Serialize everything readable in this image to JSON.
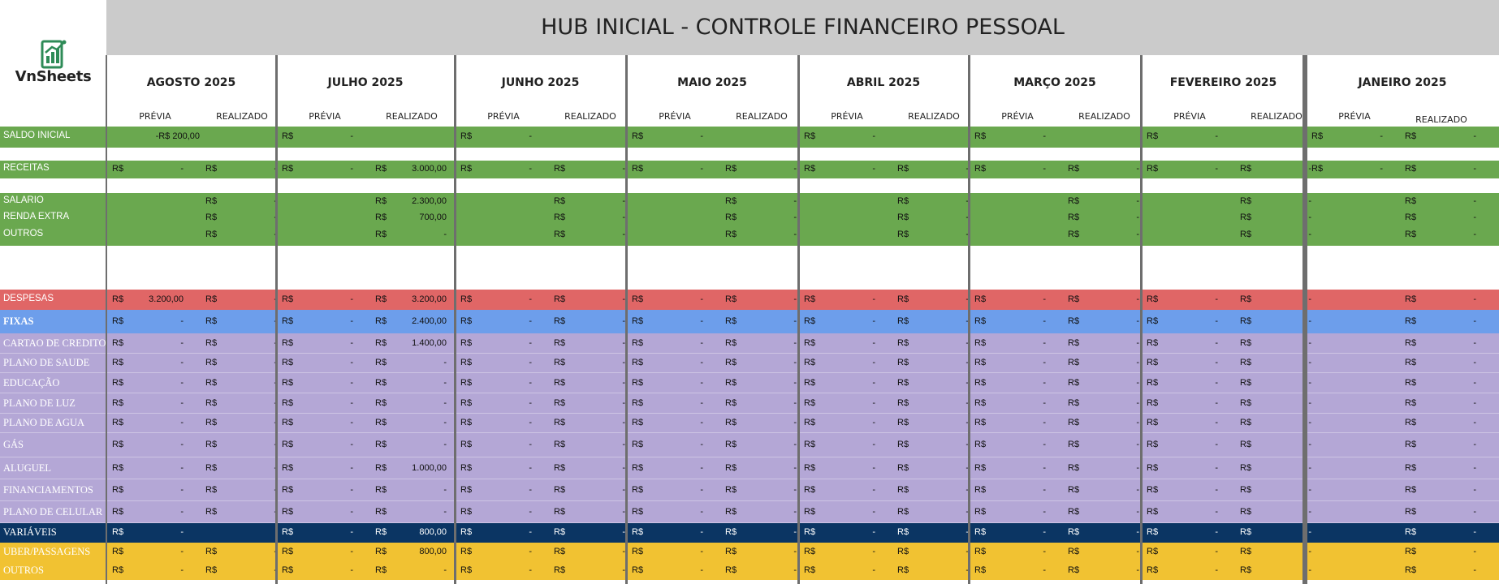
{
  "logo": {
    "text": "VnSheets",
    "icon": "spreadsheet-chart-icon"
  },
  "title": "HUB INICIAL - CONTROLE FINANCEIRO PESSOAL",
  "months": [
    "AGOSTO 2025",
    "JULHO 2025",
    "JUNHO 2025",
    "MAIO 2025",
    "ABRIL 2025",
    "MARÇO 2025",
    "FEVEREIRO 2025",
    "JANEIRO 2025"
  ],
  "col_headers": {
    "previa": "PRÉVIA",
    "realizado": "REALIZADO"
  },
  "currency": "R$",
  "empty_value": "-",
  "colors": {
    "green": "#6aa84f",
    "red": "#e06666",
    "blue": "#6d9eeb",
    "purple": "#b4a7d6",
    "navy": "#0b3563",
    "yellow": "#f1c232",
    "title_bg": "#cbcbcb"
  },
  "rows": [
    {
      "label": "SALDO INICIAL",
      "type": "saldo",
      "band": "green",
      "special_previa_first": "-R$ 200,00",
      "previa_cur": [
        false,
        true,
        true,
        true,
        true,
        true,
        true,
        true
      ],
      "realizado_cur": [
        false,
        false,
        false,
        false,
        false,
        false,
        false,
        true
      ],
      "previa_vals": [
        "",
        "-",
        "-",
        "-",
        "-",
        "-",
        "-",
        "-"
      ],
      "realizado_vals": [
        "",
        "",
        "",
        "",
        "",
        "",
        "",
        "-"
      ]
    },
    {
      "label": "RECEITAS",
      "type": "std",
      "band": "green",
      "previa": [
        "-",
        "-",
        "-",
        "-",
        "-",
        "-",
        "-",
        "-"
      ],
      "realizado": [
        "-",
        "3.000,00",
        "-",
        "-",
        "-",
        "-",
        "-",
        "-"
      ]
    },
    {
      "label": "SALARIO",
      "type": "real_only",
      "band": "green",
      "realizado": [
        "-",
        "2.300,00",
        "-",
        "-",
        "-",
        "-",
        "-",
        "-"
      ]
    },
    {
      "label": "RENDA EXTRA",
      "type": "real_only",
      "band": "green",
      "realizado": [
        "-",
        "700,00",
        "-",
        "-",
        "-",
        "-",
        "-",
        "-"
      ]
    },
    {
      "label": "OUTROS",
      "type": "real_only",
      "band": "green",
      "realizado": [
        "-",
        "-",
        "-",
        "-",
        "-",
        "-",
        "-",
        "-"
      ]
    },
    {
      "label": "DESPESAS",
      "type": "std_jan_real",
      "band": "red",
      "previa": [
        "3.200,00",
        "-",
        "-",
        "-",
        "-",
        "-",
        "-",
        ""
      ],
      "realizado": [
        "-",
        "3.200,00",
        "-",
        "-",
        "-",
        "-",
        "-",
        "-"
      ]
    },
    {
      "label": "FIXAS",
      "type": "std_jan_real",
      "band": "blue",
      "bold": true,
      "previa": [
        "-",
        "-",
        "-",
        "-",
        "-",
        "-",
        "-",
        ""
      ],
      "realizado": [
        "-",
        "2.400,00",
        "-",
        "-",
        "-",
        "-",
        "-",
        "-"
      ]
    },
    {
      "label": "CARTAO DE CREDITO",
      "type": "std_jan_real",
      "band": "purple",
      "previa": [
        "-",
        "-",
        "-",
        "-",
        "-",
        "-",
        "-",
        ""
      ],
      "realizado": [
        "-",
        "1.400,00",
        "-",
        "-",
        "-",
        "-",
        "-",
        "-"
      ]
    },
    {
      "label": "PLANO DE SAUDE",
      "type": "std_jan_real",
      "band": "purple",
      "previa": [
        "-",
        "-",
        "-",
        "-",
        "-",
        "-",
        "-",
        ""
      ],
      "realizado": [
        "-",
        "-",
        "-",
        "-",
        "-",
        "-",
        "-",
        "-"
      ]
    },
    {
      "label": "EDUCAÇÃO",
      "type": "std_jan_real",
      "band": "purple",
      "previa": [
        "-",
        "-",
        "-",
        "-",
        "-",
        "-",
        "-",
        ""
      ],
      "realizado": [
        "-",
        "-",
        "-",
        "-",
        "-",
        "-",
        "-",
        "-"
      ]
    },
    {
      "label": "PLANO DE LUZ",
      "type": "std_jan_real",
      "band": "purple",
      "previa": [
        "-",
        "-",
        "-",
        "-",
        "-",
        "-",
        "-",
        ""
      ],
      "realizado": [
        "-",
        "-",
        "-",
        "-",
        "-",
        "-",
        "-",
        "-"
      ]
    },
    {
      "label": "PLANO DE AGUA",
      "type": "std_jan_real",
      "band": "purple",
      "previa": [
        "-",
        "-",
        "-",
        "-",
        "-",
        "-",
        "-",
        ""
      ],
      "realizado": [
        "-",
        "-",
        "-",
        "-",
        "-",
        "-",
        "-",
        "-"
      ]
    },
    {
      "label": "GÁS",
      "type": "std_jan_real",
      "band": "purple",
      "previa": [
        "-",
        "-",
        "-",
        "-",
        "-",
        "-",
        "-",
        ""
      ],
      "realizado": [
        "-",
        "-",
        "-",
        "-",
        "-",
        "-",
        "-",
        "-"
      ]
    },
    {
      "label": "ALUGUEL",
      "type": "std_jan_real",
      "band": "purple",
      "previa": [
        "-",
        "-",
        "-",
        "-",
        "-",
        "-",
        "-",
        ""
      ],
      "realizado": [
        "-",
        "1.000,00",
        "-",
        "-",
        "-",
        "-",
        "-",
        "-"
      ]
    },
    {
      "label": "FINANCIAMENTOS",
      "type": "std_jan_real",
      "band": "purple",
      "previa": [
        "-",
        "-",
        "-",
        "-",
        "-",
        "-",
        "-",
        ""
      ],
      "realizado": [
        "-",
        "-",
        "-",
        "-",
        "-",
        "-",
        "-",
        "-"
      ]
    },
    {
      "label": "PLANO DE CELULAR",
      "type": "std_jan_real",
      "band": "purple",
      "previa": [
        "-",
        "-",
        "-",
        "-",
        "-",
        "-",
        "-",
        ""
      ],
      "realizado": [
        "-",
        "-",
        "-",
        "-",
        "-",
        "-",
        "-",
        "-"
      ]
    },
    {
      "label": "VARIÁVEIS",
      "type": "varia",
      "band": "navy",
      "previa": [
        "-",
        "-",
        "-",
        "-",
        "-",
        "-",
        "-",
        ""
      ],
      "realizado": [
        "",
        "800,00",
        "-",
        "-",
        "-",
        "-",
        "-",
        "-"
      ]
    },
    {
      "label": "UBER/PASSAGENS",
      "type": "std_jan_real",
      "band": "yellow",
      "previa": [
        "-",
        "-",
        "-",
        "-",
        "-",
        "-",
        "-",
        ""
      ],
      "realizado": [
        "-",
        "800,00",
        "-",
        "-",
        "-",
        "-",
        "-",
        "-"
      ]
    },
    {
      "label": "OUTROS",
      "type": "std_jan_real",
      "band": "yellow",
      "previa": [
        "-",
        "-",
        "-",
        "-",
        "-",
        "-",
        "-",
        ""
      ],
      "realizado": [
        "-",
        "-",
        "-",
        "-",
        "-",
        "-",
        "-",
        "-"
      ]
    }
  ]
}
